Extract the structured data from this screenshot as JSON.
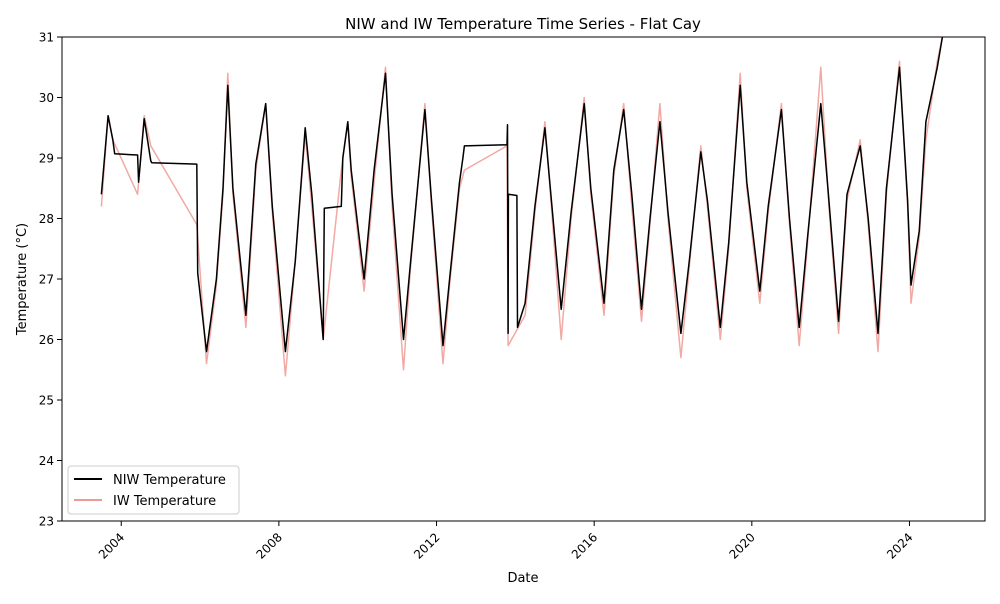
{
  "chart_data": {
    "type": "line",
    "title": "NIW and IW Temperature Time Series - Flat Cay",
    "xlabel": "Date",
    "ylabel": "Temperature (°C)",
    "xlim": [
      "2002-07-01",
      "2025-12-01"
    ],
    "ylim": [
      23,
      31
    ],
    "x_ticks": [
      "2004",
      "2008",
      "2012",
      "2016",
      "2020",
      "2024"
    ],
    "y_ticks": [
      "23",
      "24",
      "25",
      "26",
      "27",
      "28",
      "29",
      "30",
      "31"
    ],
    "grid": false,
    "legend_position": "lower-left",
    "series": [
      {
        "name": "NIW Temperature",
        "color": "#000000",
        "points": [
          [
            "2003-07-01",
            28.4
          ],
          [
            "2003-09-01",
            29.7
          ],
          [
            "2003-10-15",
            29.3
          ],
          [
            "2003-11-01",
            29.07
          ],
          [
            "2004-06-01",
            29.05
          ],
          [
            "2004-06-10",
            28.6
          ],
          [
            "2004-08-01",
            29.65
          ],
          [
            "2004-10-01",
            28.95
          ],
          [
            "2004-10-10",
            28.92
          ],
          [
            "2005-12-01",
            28.9
          ],
          [
            "2005-12-10",
            27.1
          ],
          [
            "2006-03-01",
            25.8
          ],
          [
            "2006-06-01",
            27.0
          ],
          [
            "2006-08-01",
            28.5
          ],
          [
            "2006-09-15",
            30.2
          ],
          [
            "2006-11-01",
            28.5
          ],
          [
            "2007-03-01",
            26.4
          ],
          [
            "2007-06-01",
            28.9
          ],
          [
            "2007-09-01",
            29.9
          ],
          [
            "2007-11-01",
            28.2
          ],
          [
            "2008-03-01",
            25.8
          ],
          [
            "2008-06-01",
            27.3
          ],
          [
            "2008-09-01",
            29.5
          ],
          [
            "2008-11-01",
            28.4
          ],
          [
            "2009-02-15",
            26.0
          ],
          [
            "2009-02-25",
            28.17
          ],
          [
            "2009-08-01",
            28.2
          ],
          [
            "2009-08-15",
            29.0
          ],
          [
            "2009-10-01",
            29.6
          ],
          [
            "2009-11-01",
            28.8
          ],
          [
            "2010-03-01",
            27.0
          ],
          [
            "2010-06-01",
            28.8
          ],
          [
            "2010-09-15",
            30.4
          ],
          [
            "2010-11-15",
            28.4
          ],
          [
            "2011-03-01",
            26.0
          ],
          [
            "2011-05-01",
            27.2
          ],
          [
            "2011-09-15",
            29.8
          ],
          [
            "2011-11-15",
            28.3
          ],
          [
            "2012-03-01",
            25.9
          ],
          [
            "2012-05-01",
            27.0
          ],
          [
            "2012-08-01",
            28.6
          ],
          [
            "2012-09-01",
            29.0
          ],
          [
            "2012-09-15",
            29.2
          ],
          [
            "2013-10-15",
            29.22
          ],
          [
            "2013-10-20",
            29.55
          ],
          [
            "2013-10-25",
            26.1
          ],
          [
            "2013-10-28",
            28.4
          ],
          [
            "2014-01-15",
            28.38
          ],
          [
            "2014-01-20",
            26.2
          ],
          [
            "2014-04-01",
            26.6
          ],
          [
            "2014-07-01",
            28.2
          ],
          [
            "2014-10-01",
            29.5
          ],
          [
            "2014-12-01",
            28.3
          ],
          [
            "2015-03-01",
            26.5
          ],
          [
            "2015-06-01",
            28.1
          ],
          [
            "2015-10-01",
            29.9
          ],
          [
            "2015-12-01",
            28.5
          ],
          [
            "2016-04-01",
            26.6
          ],
          [
            "2016-07-01",
            28.8
          ],
          [
            "2016-10-01",
            29.8
          ],
          [
            "2016-12-15",
            28.4
          ],
          [
            "2017-03-15",
            26.5
          ],
          [
            "2017-06-01",
            28.0
          ],
          [
            "2017-09-01",
            29.6
          ],
          [
            "2017-11-15",
            28.1
          ],
          [
            "2018-03-15",
            26.1
          ],
          [
            "2018-06-01",
            27.3
          ],
          [
            "2018-09-15",
            29.1
          ],
          [
            "2018-11-15",
            28.3
          ],
          [
            "2019-03-15",
            26.2
          ],
          [
            "2019-06-01",
            27.6
          ],
          [
            "2019-09-15",
            30.2
          ],
          [
            "2019-11-15",
            28.6
          ],
          [
            "2020-03-15",
            26.8
          ],
          [
            "2020-06-01",
            28.2
          ],
          [
            "2020-10-01",
            29.8
          ],
          [
            "2020-12-15",
            28.0
          ],
          [
            "2021-03-15",
            26.2
          ],
          [
            "2021-06-01",
            27.7
          ],
          [
            "2021-10-01",
            29.9
          ],
          [
            "2021-12-15",
            28.3
          ],
          [
            "2022-03-15",
            26.3
          ],
          [
            "2022-06-01",
            28.4
          ],
          [
            "2022-10-01",
            29.2
          ],
          [
            "2022-12-15",
            28.0
          ],
          [
            "2023-03-15",
            26.1
          ],
          [
            "2023-06-01",
            28.5
          ],
          [
            "2023-10-01",
            30.5
          ],
          [
            "2023-12-15",
            28.3
          ],
          [
            "2024-01-15",
            26.9
          ],
          [
            "2024-04-01",
            27.8
          ],
          [
            "2024-06-01",
            29.6
          ],
          [
            "2024-09-15",
            30.5
          ],
          [
            "2024-11-01",
            31.0
          ]
        ]
      },
      {
        "name": "IW Temperature",
        "color": "#ee9a94",
        "points": [
          [
            "2003-07-01",
            28.2
          ],
          [
            "2003-09-01",
            29.7
          ],
          [
            "2003-10-15",
            29.3
          ],
          [
            "2004-06-01",
            28.4
          ],
          [
            "2004-08-01",
            29.7
          ],
          [
            "2004-10-01",
            29.2
          ],
          [
            "2005-12-01",
            27.9
          ],
          [
            "2006-03-01",
            25.6
          ],
          [
            "2006-06-01",
            26.9
          ],
          [
            "2006-08-01",
            28.4
          ],
          [
            "2006-09-15",
            30.4
          ],
          [
            "2006-11-01",
            28.4
          ],
          [
            "2007-03-01",
            26.2
          ],
          [
            "2007-06-01",
            28.8
          ],
          [
            "2007-09-01",
            29.9
          ],
          [
            "2007-11-01",
            28.1
          ],
          [
            "2008-03-01",
            25.4
          ],
          [
            "2008-06-01",
            27.3
          ],
          [
            "2008-09-01",
            29.4
          ],
          [
            "2008-11-01",
            28.2
          ],
          [
            "2009-02-15",
            26.0
          ],
          [
            "2009-08-01",
            28.8
          ],
          [
            "2009-10-01",
            29.6
          ],
          [
            "2009-11-01",
            28.7
          ],
          [
            "2010-03-01",
            26.8
          ],
          [
            "2010-06-01",
            28.6
          ],
          [
            "2010-09-15",
            30.5
          ],
          [
            "2010-11-15",
            28.2
          ],
          [
            "2011-03-01",
            25.5
          ],
          [
            "2011-05-01",
            27.1
          ],
          [
            "2011-09-15",
            29.9
          ],
          [
            "2011-11-15",
            28.2
          ],
          [
            "2012-03-01",
            25.6
          ],
          [
            "2012-05-01",
            26.9
          ],
          [
            "2012-08-01",
            28.5
          ],
          [
            "2012-09-15",
            28.8
          ],
          [
            "2013-10-15",
            29.2
          ],
          [
            "2013-10-25",
            25.9
          ],
          [
            "2014-04-01",
            26.4
          ],
          [
            "2014-07-01",
            28.1
          ],
          [
            "2014-10-01",
            29.6
          ],
          [
            "2014-12-01",
            28.2
          ],
          [
            "2015-03-01",
            26.0
          ],
          [
            "2015-06-01",
            28.0
          ],
          [
            "2015-10-01",
            30.0
          ],
          [
            "2015-12-01",
            28.4
          ],
          [
            "2016-04-01",
            26.4
          ],
          [
            "2016-07-01",
            28.7
          ],
          [
            "2016-10-01",
            29.9
          ],
          [
            "2016-12-15",
            28.2
          ],
          [
            "2017-03-15",
            26.3
          ],
          [
            "2017-06-01",
            27.9
          ],
          [
            "2017-09-01",
            29.9
          ],
          [
            "2017-11-15",
            28.0
          ],
          [
            "2018-03-15",
            25.7
          ],
          [
            "2018-06-01",
            27.2
          ],
          [
            "2018-09-15",
            29.2
          ],
          [
            "2018-11-15",
            28.2
          ],
          [
            "2019-03-15",
            26.0
          ],
          [
            "2019-06-01",
            27.5
          ],
          [
            "2019-09-15",
            30.4
          ],
          [
            "2019-11-15",
            28.5
          ],
          [
            "2020-03-15",
            26.6
          ],
          [
            "2020-06-01",
            28.1
          ],
          [
            "2020-10-01",
            29.9
          ],
          [
            "2020-12-15",
            27.9
          ],
          [
            "2021-03-15",
            25.9
          ],
          [
            "2021-06-01",
            27.6
          ],
          [
            "2021-10-01",
            30.5
          ],
          [
            "2021-12-15",
            28.2
          ],
          [
            "2022-03-15",
            26.1
          ],
          [
            "2022-06-01",
            28.3
          ],
          [
            "2022-10-01",
            29.3
          ],
          [
            "2022-12-15",
            27.9
          ],
          [
            "2023-03-15",
            25.8
          ],
          [
            "2023-06-01",
            28.4
          ],
          [
            "2023-10-01",
            30.6
          ],
          [
            "2023-12-15",
            28.2
          ],
          [
            "2024-01-15",
            26.6
          ],
          [
            "2024-04-01",
            27.7
          ],
          [
            "2024-06-01",
            29.3
          ],
          [
            "2024-09-15",
            30.6
          ],
          [
            "2024-11-01",
            31.0
          ]
        ]
      }
    ]
  }
}
